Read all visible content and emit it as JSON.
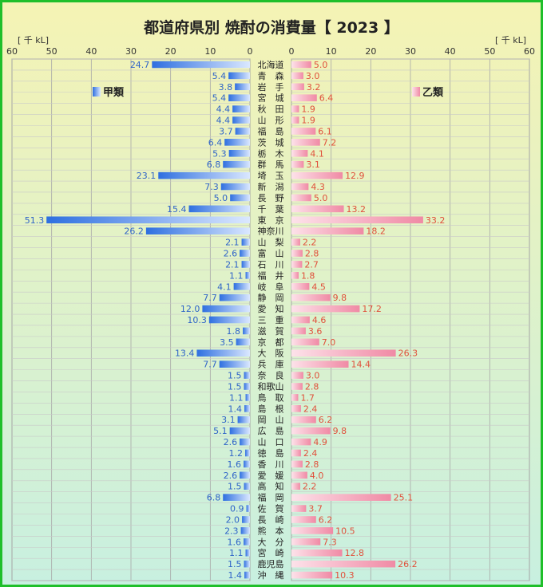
{
  "title": "都道府県別 焼酎の消費量【 2023 】",
  "chart_data": {
    "type": "bar",
    "title": "都道府県別 焼酎の消費量【 2023 】",
    "unit_left": "[ 千 kL]",
    "unit_right": "[ 千 kL]",
    "xlim": [
      0,
      60
    ],
    "ticks": [
      60,
      50,
      40,
      30,
      20,
      10,
      0
    ],
    "grid": true,
    "legend_left": "甲類",
    "legend_right": "乙類",
    "colors": {
      "kou": "#3a7ee8",
      "otsu": "#f29ab0",
      "kou_label": "#2f63c8",
      "otsu_label": "#e0503c"
    },
    "categories": [
      "北海道",
      "青　森",
      "岩　手",
      "宮　城",
      "秋　田",
      "山　形",
      "福　島",
      "茨　城",
      "栃　木",
      "群　馬",
      "埼　玉",
      "新　潟",
      "長　野",
      "千　葉",
      "東　京",
      "神奈川",
      "山　梨",
      "富　山",
      "石　川",
      "福　井",
      "岐　阜",
      "静　岡",
      "愛　知",
      "三　重",
      "滋　賀",
      "京　都",
      "大　阪",
      "兵　庫",
      "奈　良",
      "和歌山",
      "鳥　取",
      "島　根",
      "岡　山",
      "広　島",
      "山　口",
      "徳　島",
      "香　川",
      "愛　媛",
      "高　知",
      "福　岡",
      "佐　賀",
      "長　崎",
      "熊　本",
      "大　分",
      "宮　崎",
      "鹿児島",
      "沖　縄"
    ],
    "series": [
      {
        "name": "甲類",
        "values": [
          24.7,
          5.4,
          3.8,
          5.4,
          4.4,
          4.4,
          3.7,
          6.4,
          5.3,
          6.8,
          23.1,
          7.3,
          5.0,
          15.4,
          51.3,
          26.2,
          2.1,
          2.6,
          2.1,
          1.1,
          4.1,
          7.7,
          12.0,
          10.3,
          1.8,
          3.5,
          13.4,
          7.7,
          1.5,
          1.5,
          1.1,
          1.4,
          3.1,
          5.1,
          2.6,
          1.2,
          1.6,
          2.6,
          1.5,
          6.8,
          0.9,
          2.0,
          2.3,
          1.6,
          1.1,
          1.5,
          1.4
        ]
      },
      {
        "name": "乙類",
        "values": [
          5.0,
          3.0,
          3.2,
          6.4,
          1.9,
          1.9,
          6.1,
          7.2,
          4.1,
          3.1,
          12.9,
          4.3,
          5.0,
          13.2,
          33.2,
          18.2,
          2.2,
          2.8,
          2.7,
          1.8,
          4.5,
          9.8,
          17.2,
          4.6,
          3.6,
          7.0,
          26.3,
          14.4,
          3.0,
          2.8,
          1.7,
          2.4,
          6.2,
          9.8,
          4.9,
          2.4,
          2.8,
          4.0,
          2.2,
          25.1,
          3.7,
          6.2,
          10.5,
          7.3,
          12.8,
          26.2,
          10.3
        ]
      }
    ]
  }
}
